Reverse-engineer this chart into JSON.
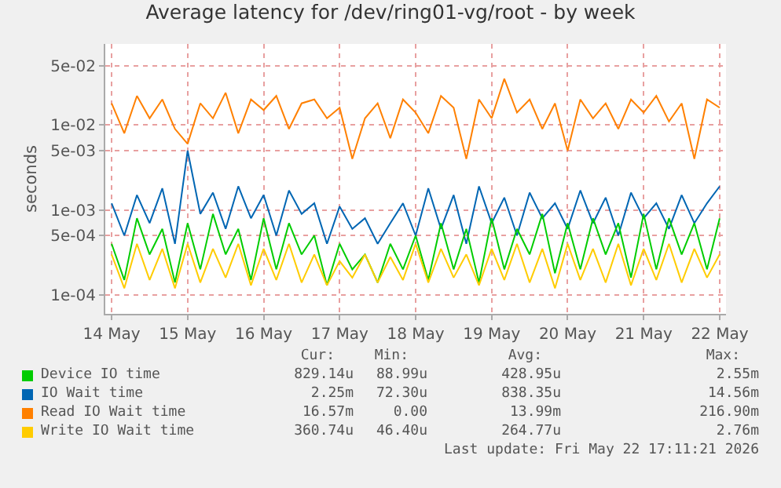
{
  "chart_data": {
    "type": "line",
    "title": "Average latency for /dev/ring01-vg/root - by week",
    "ylabel": "seconds",
    "log": true,
    "grid": true,
    "legend": "bottom",
    "marker": "none",
    "line_style": "solid",
    "x": [
      "2026-05-14T00:00",
      "2026-05-14T04:00",
      "2026-05-14T08:00",
      "2026-05-14T12:00",
      "2026-05-14T16:00",
      "2026-05-14T20:00",
      "2026-05-15T00:00",
      "2026-05-15T04:00",
      "2026-05-15T08:00",
      "2026-05-15T12:00",
      "2026-05-15T16:00",
      "2026-05-15T20:00",
      "2026-05-16T00:00",
      "2026-05-16T04:00",
      "2026-05-16T08:00",
      "2026-05-16T12:00",
      "2026-05-16T16:00",
      "2026-05-16T20:00",
      "2026-05-17T00:00",
      "2026-05-17T04:00",
      "2026-05-17T08:00",
      "2026-05-17T12:00",
      "2026-05-17T16:00",
      "2026-05-17T20:00",
      "2026-05-18T00:00",
      "2026-05-18T04:00",
      "2026-05-18T08:00",
      "2026-05-18T12:00",
      "2026-05-18T16:00",
      "2026-05-18T20:00",
      "2026-05-19T00:00",
      "2026-05-19T04:00",
      "2026-05-19T08:00",
      "2026-05-19T12:00",
      "2026-05-19T16:00",
      "2026-05-19T20:00",
      "2026-05-20T00:00",
      "2026-05-20T04:00",
      "2026-05-20T08:00",
      "2026-05-20T12:00",
      "2026-05-20T16:00",
      "2026-05-20T20:00",
      "2026-05-21T00:00",
      "2026-05-21T04:00",
      "2026-05-21T08:00",
      "2026-05-21T12:00",
      "2026-05-21T16:00",
      "2026-05-21T20:00",
      "2026-05-22T00:00"
    ],
    "xlim": [
      "2026-05-13T22:00",
      "2026-05-22T02:00"
    ],
    "xticks": [
      {
        "value": "2026-05-14",
        "label": "14 May"
      },
      {
        "value": "2026-05-15",
        "label": "15 May"
      },
      {
        "value": "2026-05-16",
        "label": "16 May"
      },
      {
        "value": "2026-05-17",
        "label": "17 May"
      },
      {
        "value": "2026-05-18",
        "label": "18 May"
      },
      {
        "value": "2026-05-19",
        "label": "19 May"
      },
      {
        "value": "2026-05-20",
        "label": "20 May"
      },
      {
        "value": "2026-05-21",
        "label": "21 May"
      },
      {
        "value": "2026-05-22",
        "label": "22 May"
      }
    ],
    "ylim": [
      6e-05,
      0.09
    ],
    "yticks": [
      {
        "value": 0.0001,
        "label": "1e-04"
      },
      {
        "value": 0.0005,
        "label": "5e-04"
      },
      {
        "value": 0.001,
        "label": "1e-03"
      },
      {
        "value": 0.005,
        "label": "5e-03"
      },
      {
        "value": 0.01,
        "label": "1e-02"
      },
      {
        "value": 0.05,
        "label": "5e-02"
      }
    ],
    "series": [
      {
        "name": "Read IO Wait time",
        "color": "#ff8000",
        "values": [
          0.018,
          0.008,
          0.022,
          0.012,
          0.02,
          0.009,
          0.006,
          0.018,
          0.012,
          0.024,
          0.008,
          0.02,
          0.015,
          0.022,
          0.009,
          0.018,
          0.02,
          0.012,
          0.016,
          0.004,
          0.012,
          0.018,
          0.007,
          0.02,
          0.014,
          0.008,
          0.022,
          0.016,
          0.004,
          0.02,
          0.012,
          0.035,
          0.014,
          0.02,
          0.009,
          0.018,
          0.005,
          0.02,
          0.012,
          0.018,
          0.009,
          0.02,
          0.014,
          0.022,
          0.011,
          0.018,
          0.004,
          0.02,
          0.016
        ]
      },
      {
        "name": "IO Wait time",
        "color": "#0066b3",
        "values": [
          0.0012,
          0.0005,
          0.0015,
          0.0007,
          0.0018,
          0.0004,
          0.005,
          0.0009,
          0.0016,
          0.0006,
          0.0019,
          0.0008,
          0.0015,
          0.0005,
          0.0017,
          0.0009,
          0.0012,
          0.0004,
          0.0011,
          0.0006,
          0.0008,
          0.0004,
          0.0007,
          0.0012,
          0.0005,
          0.0018,
          0.0006,
          0.0015,
          0.0004,
          0.0019,
          0.0007,
          0.0014,
          0.0005,
          0.0016,
          0.0008,
          0.0012,
          0.0006,
          0.0017,
          0.0007,
          0.0014,
          0.0005,
          0.0016,
          0.0008,
          0.0012,
          0.0006,
          0.0015,
          0.0007,
          0.0012,
          0.0019
        ]
      },
      {
        "name": "Device IO time",
        "color": "#00cc00",
        "values": [
          0.0004,
          0.00015,
          0.0008,
          0.0003,
          0.0006,
          0.00014,
          0.0007,
          0.0002,
          0.0009,
          0.0003,
          0.0006,
          0.00015,
          0.0008,
          0.0002,
          0.0007,
          0.0003,
          0.0005,
          0.00013,
          0.0004,
          0.0002,
          0.0003,
          0.00014,
          0.0004,
          0.0002,
          0.0005,
          0.00015,
          0.0007,
          0.0002,
          0.0006,
          0.00014,
          0.0008,
          0.0002,
          0.0006,
          0.0003,
          0.0009,
          0.00018,
          0.0007,
          0.0002,
          0.0008,
          0.0003,
          0.0007,
          0.00016,
          0.0009,
          0.0002,
          0.0008,
          0.0003,
          0.0007,
          0.0002,
          0.0008
        ]
      },
      {
        "name": "Write IO Wait time",
        "color": "#ffcc00",
        "values": [
          0.0003,
          0.00012,
          0.0004,
          0.00015,
          0.00035,
          0.00012,
          0.0004,
          0.00014,
          0.00035,
          0.00016,
          0.0004,
          0.00013,
          0.00035,
          0.00015,
          0.0004,
          0.00014,
          0.0003,
          0.00013,
          0.00025,
          0.00016,
          0.0003,
          0.00014,
          0.00028,
          0.00015,
          0.0004,
          0.00014,
          0.00035,
          0.00016,
          0.0003,
          0.00013,
          0.00035,
          0.00015,
          0.0004,
          0.00014,
          0.00035,
          0.00012,
          0.0004,
          0.00015,
          0.00035,
          0.00014,
          0.0004,
          0.00013,
          0.00035,
          0.00015,
          0.0004,
          0.00014,
          0.00035,
          0.00016,
          0.0003
        ]
      }
    ],
    "annotations": [
      "Cur:",
      "Min:",
      "Avg:",
      "Max:",
      "829.14u",
      "88.99u",
      "428.95u",
      "2.55m",
      "2.25m",
      "72.30u",
      "838.35u",
      "14.56m",
      "16.57m",
      "0.00",
      "13.99m",
      "216.90m",
      "360.74u",
      "46.40u",
      "264.77u",
      "2.76m",
      "Last update: Fri May 22 17:11:21 2026"
    ]
  }
}
